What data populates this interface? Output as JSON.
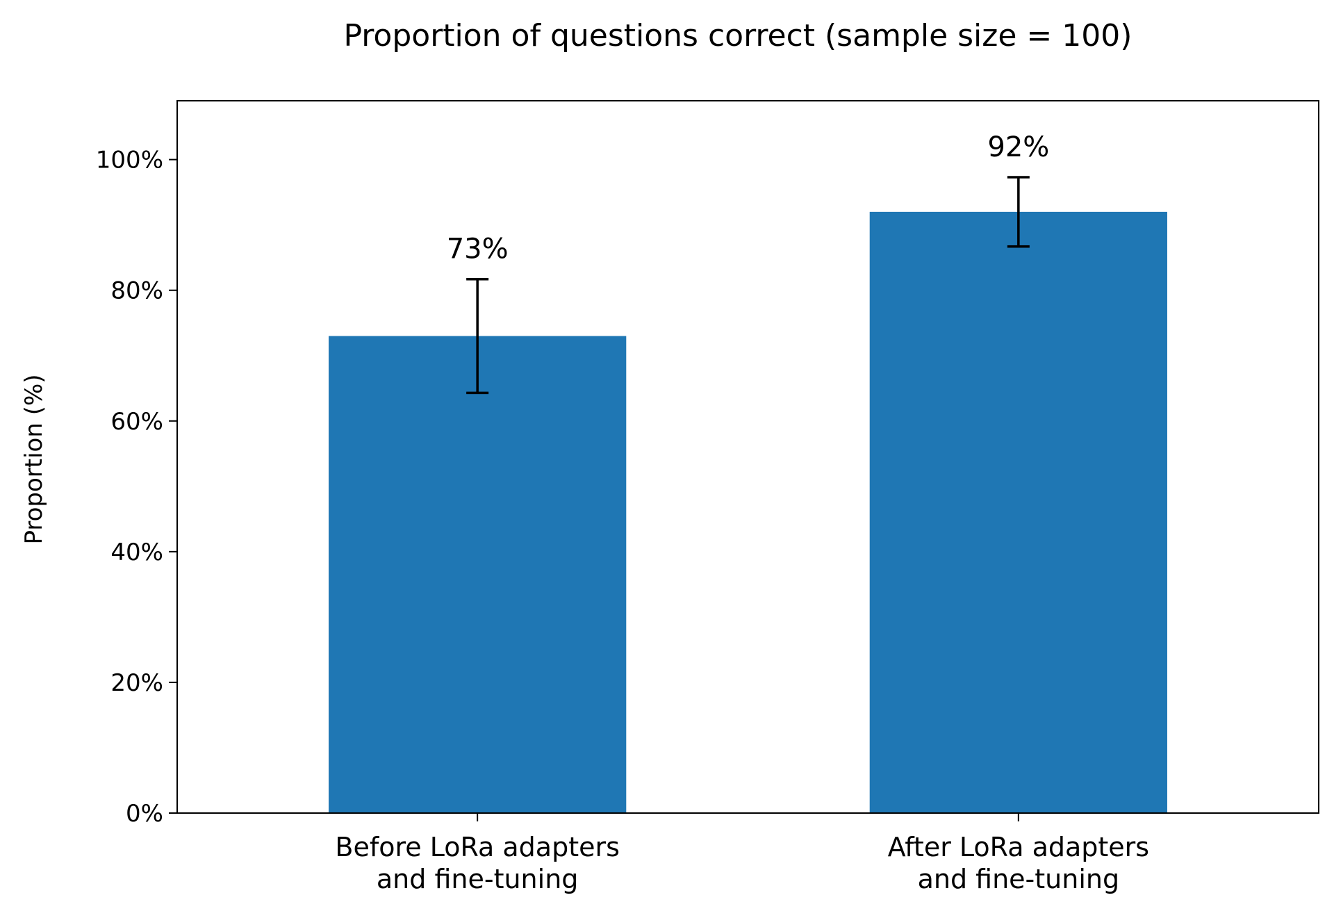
{
  "chart_data": {
    "type": "bar",
    "title": "Proportion of questions correct (sample size = 100)",
    "xlabel": "",
    "ylabel": "Proportion (%)",
    "categories": [
      [
        "Before LoRa adapters",
        "and fine-tuning"
      ],
      [
        "After LoRa adapters",
        "and fine-tuning"
      ]
    ],
    "values": [
      73,
      92
    ],
    "value_labels": [
      "73%",
      "92%"
    ],
    "error_bars": [
      {
        "low": 64.3,
        "high": 81.7
      },
      {
        "low": 86.7,
        "high": 97.3
      }
    ],
    "ylim": [
      0,
      109
    ],
    "yticks": [
      0,
      20,
      40,
      60,
      80,
      100
    ],
    "ytick_labels": [
      "0%",
      "20%",
      "40%",
      "60%",
      "80%",
      "100%"
    ],
    "bar_color": "#1f77b4",
    "error_color": "#000000",
    "grid": false,
    "legend": "none"
  }
}
